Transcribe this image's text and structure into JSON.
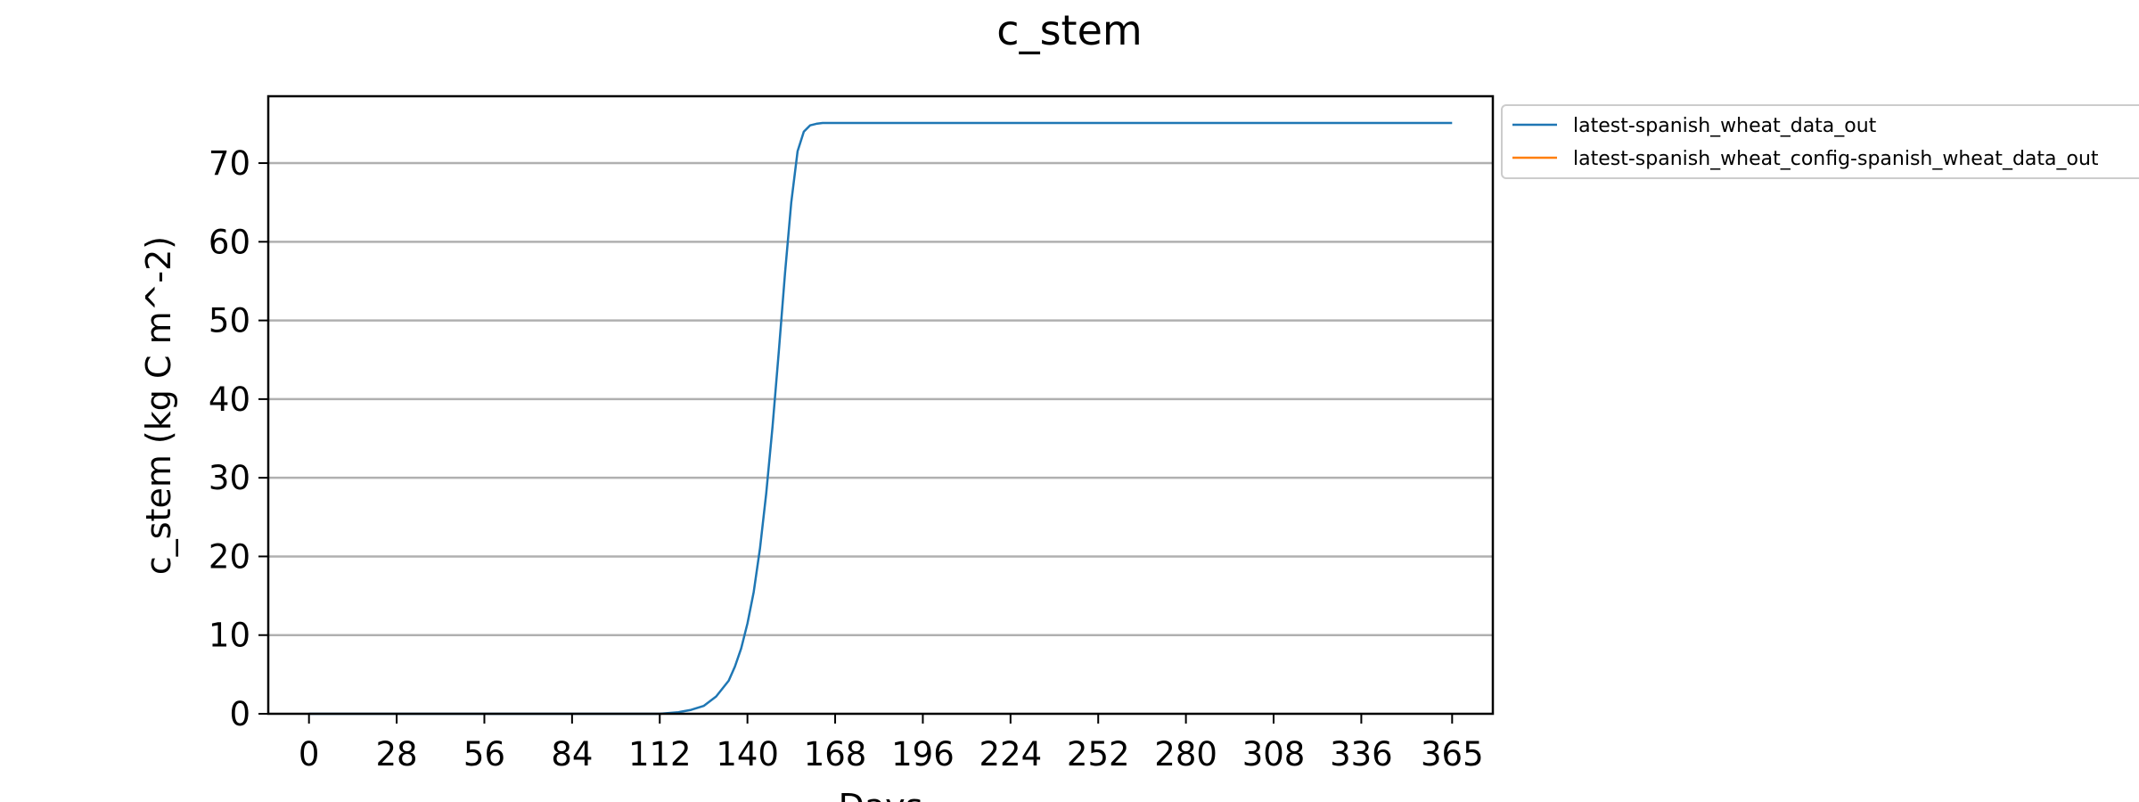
{
  "chart_data": {
    "type": "line",
    "title": "c_stem",
    "xlabel": "Days",
    "ylabel": "c_stem (kg C m^-2)",
    "xlim": [
      -13,
      378
    ],
    "ylim": [
      0,
      78.5
    ],
    "xticks": [
      0,
      28,
      56,
      84,
      112,
      140,
      168,
      196,
      224,
      252,
      280,
      308,
      336,
      365
    ],
    "yticks": [
      0,
      10,
      20,
      30,
      40,
      50,
      60,
      70
    ],
    "grid": "horizontal",
    "legend_position": "outside-right",
    "series": [
      {
        "name": "latest-spanish_wheat_data_out",
        "color": "#1f77b4",
        "x": [
          0,
          28,
          56,
          84,
          112,
          118,
          122,
          126,
          130,
          134,
          136,
          138,
          140,
          142,
          144,
          146,
          148,
          150,
          152,
          154,
          156,
          158,
          160,
          162,
          164,
          168,
          196,
          224,
          252,
          280,
          308,
          336,
          365
        ],
        "y": [
          0,
          0,
          0,
          0,
          0,
          0.2,
          0.5,
          1.0,
          2.2,
          4.2,
          6.0,
          8.3,
          11.5,
          15.5,
          21.0,
          28.0,
          36.5,
          46.0,
          56.0,
          65.0,
          71.5,
          74.0,
          74.8,
          75.0,
          75.1,
          75.1,
          75.1,
          75.1,
          75.1,
          75.1,
          75.1,
          75.1,
          75.1
        ]
      },
      {
        "name": "latest-spanish_wheat_config-spanish_wheat_data_out",
        "color": "#ff7f0e",
        "x": [],
        "y": []
      }
    ]
  }
}
